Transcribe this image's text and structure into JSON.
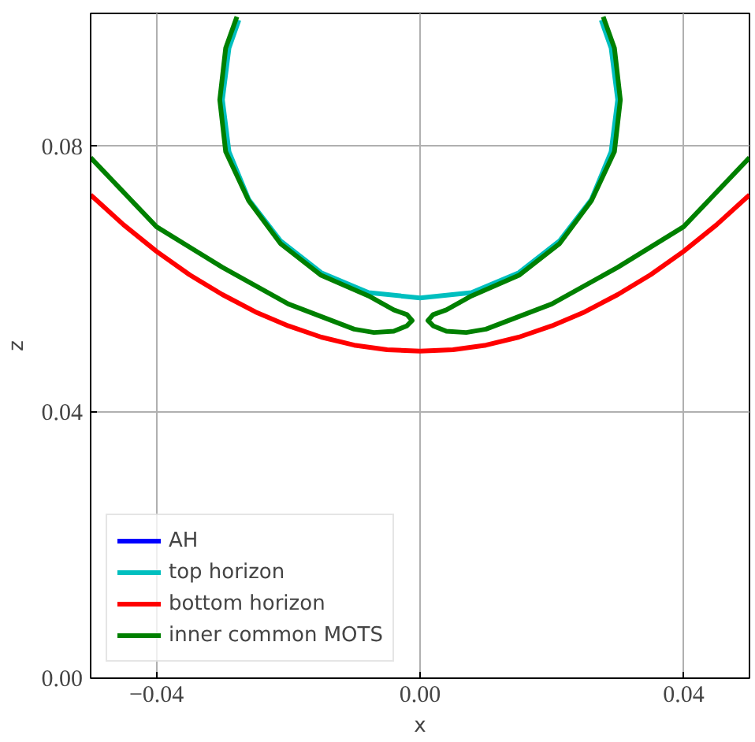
{
  "chart_data": {
    "type": "line",
    "xlabel": "x",
    "ylabel": "z",
    "xlim": [
      -0.05,
      0.05
    ],
    "ylim": [
      0,
      0.1
    ],
    "xticks": [
      {
        "value": -0.04,
        "label": "−0.04"
      },
      {
        "value": 0,
        "label": "0.00"
      },
      {
        "value": 0.04,
        "label": "0.04"
      }
    ],
    "yticks": [
      {
        "value": 0,
        "label": "0.00"
      },
      {
        "value": 0.04,
        "label": "0.04"
      },
      {
        "value": 0.08,
        "label": "0.08"
      }
    ],
    "grid": true,
    "legend": "bottom left",
    "line_style": "solid",
    "marker": "none",
    "series": [
      {
        "name": "AH",
        "color": "#0000ff"
      },
      {
        "name": "top horizon",
        "color": "#00bfbf",
        "x": [
          -0.0275,
          -0.029,
          -0.03,
          -0.029,
          -0.026,
          -0.0212,
          -0.015,
          -0.0078,
          0,
          0.0078,
          0.015,
          0.0212,
          0.026,
          0.029,
          0.03,
          0.029,
          0.0275
        ],
        "values": [
          0.099,
          0.0948,
          0.087,
          0.0792,
          0.072,
          0.0658,
          0.061,
          0.058,
          0.0572,
          0.058,
          0.061,
          0.0658,
          0.072,
          0.0792,
          0.087,
          0.0948,
          0.099
        ]
      },
      {
        "name": "bottom horizon",
        "color": "#ff0000",
        "x": [
          -0.05,
          -0.045,
          -0.04,
          -0.035,
          -0.03,
          -0.025,
          -0.02,
          -0.015,
          -0.01,
          -0.005,
          0,
          0.005,
          0.01,
          0.015,
          0.02,
          0.025,
          0.03,
          0.035,
          0.04,
          0.045,
          0.05
        ],
        "values": [
          0.0727,
          0.0682,
          0.0642,
          0.0607,
          0.0577,
          0.0551,
          0.053,
          0.0513,
          0.0501,
          0.0494,
          0.0492,
          0.0494,
          0.0501,
          0.0513,
          0.053,
          0.0551,
          0.0577,
          0.0607,
          0.0642,
          0.0682,
          0.0727
        ]
      },
      {
        "name": "inner common MOTS",
        "color": "#008000",
        "x": [
          -0.05,
          -0.04,
          -0.03,
          -0.02,
          -0.01,
          -0.007,
          -0.004,
          -0.002,
          -0.0012,
          -0.002,
          -0.004,
          -0.0078,
          -0.015,
          -0.0212,
          -0.026,
          -0.0295,
          -0.0304,
          -0.0295,
          -0.0278,
          null,
          0.0278,
          0.0295,
          0.0304,
          0.0295,
          0.026,
          0.0212,
          0.015,
          0.0078,
          0.004,
          0.002,
          0.0012,
          0.002,
          0.004,
          0.007,
          0.01,
          0.02,
          0.03,
          0.04,
          0.05
        ],
        "values": [
          0.0783,
          0.0679,
          0.0618,
          0.0563,
          0.0525,
          0.052,
          0.0522,
          0.053,
          0.0538,
          0.0547,
          0.0554,
          0.0575,
          0.0606,
          0.0654,
          0.0718,
          0.0792,
          0.087,
          0.0948,
          0.0995,
          null,
          0.0995,
          0.0948,
          0.087,
          0.0792,
          0.0718,
          0.0654,
          0.0606,
          0.0575,
          0.0554,
          0.0547,
          0.0538,
          0.053,
          0.0522,
          0.052,
          0.0525,
          0.0563,
          0.0618,
          0.0679,
          0.0783
        ]
      }
    ]
  }
}
